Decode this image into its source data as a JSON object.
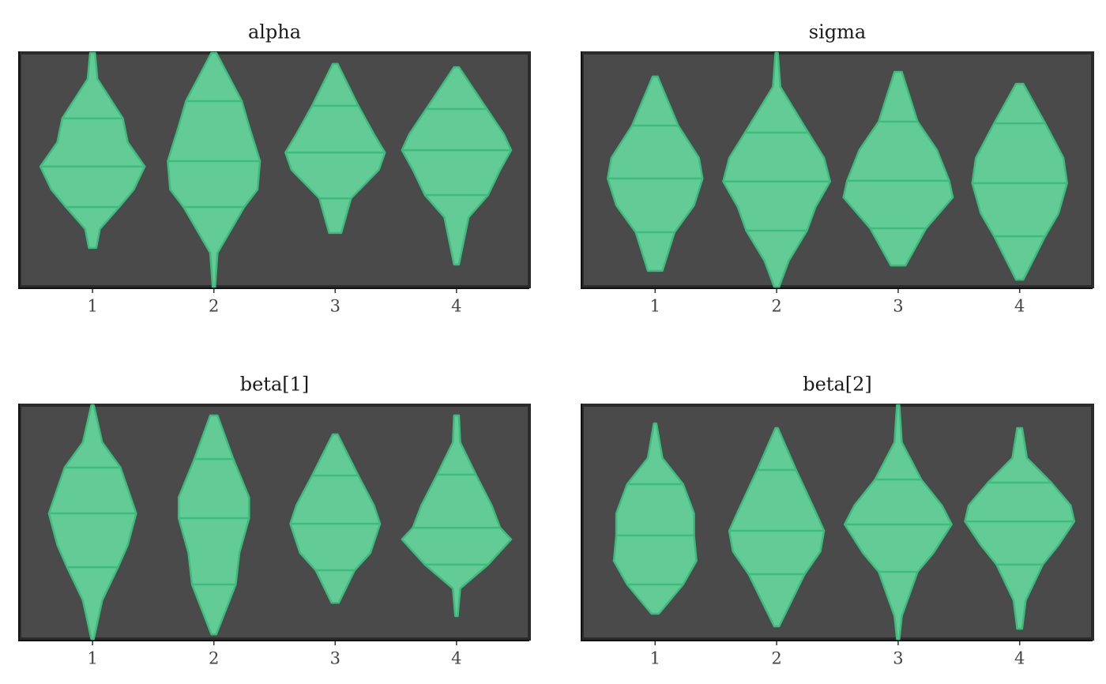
{
  "chart_data": [
    {
      "type": "violin",
      "title": "alpha",
      "categories": [
        "1",
        "2",
        "3",
        "4"
      ],
      "xlim": [
        0.4,
        4.6
      ],
      "ylim": [
        0,
        100
      ],
      "fill": "#63cb95",
      "stroke": "#3dbd7d",
      "background": "#4a4a4a",
      "series": [
        {
          "y": [
            100,
            88.9,
            72,
            61.8,
            51.4,
            41.6,
            34.1,
            24.7,
            16.6
          ],
          "half_width": [
            0.02,
            0.04,
            0.25,
            0.29,
            0.43,
            0.34,
            0.22,
            0.06,
            0.03
          ],
          "quantiles": [
            72,
            51.4,
            34.1
          ]
        },
        {
          "y": [
            100,
            79.4,
            68.6,
            53.7,
            41.6,
            34.1,
            14.5,
            0
          ],
          "half_width": [
            0.02,
            0.23,
            0.29,
            0.38,
            0.36,
            0.25,
            0.03,
            0.01
          ],
          "quantiles": [
            79.4,
            53.7,
            34.1
          ]
        },
        {
          "y": [
            95.3,
            77.4,
            65.2,
            57.4,
            50,
            37.8,
            23
          ],
          "half_width": [
            0.02,
            0.19,
            0.32,
            0.41,
            0.36,
            0.13,
            0.05
          ],
          "quantiles": [
            77.4,
            57.4,
            37.8
          ]
        },
        {
          "y": [
            93.9,
            76,
            65.2,
            58.4,
            50,
            39.2,
            29.7,
            9.5
          ],
          "half_width": [
            0.02,
            0.25,
            0.39,
            0.45,
            0.36,
            0.26,
            0.1,
            0.02
          ],
          "quantiles": [
            76,
            58.4,
            39.2
          ]
        }
      ]
    },
    {
      "type": "violin",
      "title": "sigma",
      "categories": [
        "1",
        "2",
        "3",
        "4"
      ],
      "xlim": [
        0.4,
        4.6
      ],
      "ylim": [
        0,
        100
      ],
      "fill": "#63cb95",
      "stroke": "#3dbd7d",
      "background": "#4a4a4a",
      "series": [
        {
          "y": [
            89.9,
            68.9,
            55.1,
            46.3,
            34.8,
            23.3,
            6.8
          ],
          "half_width": [
            0.02,
            0.19,
            0.36,
            0.39,
            0.32,
            0.16,
            0.06
          ],
          "quantiles": [
            68.9,
            46.3,
            23.3
          ]
        },
        {
          "y": [
            100,
            85.5,
            65.9,
            55.1,
            45,
            34.1,
            24,
            11.1,
            0
          ],
          "half_width": [
            0.01,
            0.03,
            0.26,
            0.39,
            0.44,
            0.32,
            0.25,
            0.1,
            0.02
          ],
          "quantiles": [
            65.9,
            45,
            24
          ]
        },
        {
          "y": [
            91.9,
            70.6,
            58.4,
            45.3,
            38.2,
            25,
            9.1
          ],
          "half_width": [
            0.03,
            0.16,
            0.32,
            0.42,
            0.45,
            0.23,
            0.06
          ],
          "quantiles": [
            70.6,
            45.3,
            25
          ]
        },
        {
          "y": [
            86.8,
            69.9,
            55.1,
            44.3,
            31.4,
            21.6,
            3
          ],
          "half_width": [
            0.03,
            0.21,
            0.36,
            0.39,
            0.32,
            0.21,
            0.03
          ],
          "quantiles": [
            69.9,
            44.3,
            21.6
          ]
        }
      ]
    },
    {
      "type": "violin",
      "title": "beta[1]",
      "categories": [
        "1",
        "2",
        "3",
        "4"
      ],
      "xlim": [
        0.4,
        4.6
      ],
      "ylim": [
        0,
        100
      ],
      "fill": "#63cb95",
      "stroke": "#3dbd7d",
      "background": "#4a4a4a",
      "series": [
        {
          "y": [
            100,
            84.1,
            73.3,
            53.7,
            40.2,
            30.7,
            16.6,
            0
          ],
          "half_width": [
            0.01,
            0.08,
            0.23,
            0.36,
            0.29,
            0.21,
            0.08,
            0.01
          ],
          "quantiles": [
            73.3,
            53.7,
            30.7
          ]
        },
        {
          "y": [
            95.6,
            77,
            60.5,
            51.7,
            36.8,
            23.3,
            2
          ],
          "half_width": [
            0.03,
            0.16,
            0.29,
            0.29,
            0.21,
            0.18,
            0.02
          ],
          "quantiles": [
            77,
            51.7,
            23.3
          ]
        },
        {
          "y": [
            87.5,
            69.9,
            57.1,
            49.3,
            36.8,
            29.4,
            15.5
          ],
          "half_width": [
            0.02,
            0.19,
            0.32,
            0.37,
            0.29,
            0.16,
            0.03
          ],
          "quantiles": [
            69.9,
            49.3,
            29.4
          ]
        },
        {
          "y": [
            95.6,
            84.1,
            70.3,
            57.1,
            47.6,
            42.6,
            31.8,
            21.6,
            9.8
          ],
          "half_width": [
            0.02,
            0.03,
            0.16,
            0.29,
            0.36,
            0.45,
            0.26,
            0.03,
            0.01
          ],
          "quantiles": [
            70.3,
            47.6,
            31.8
          ]
        }
      ]
    },
    {
      "type": "violin",
      "title": "beta[2]",
      "categories": [
        "1",
        "2",
        "3",
        "4"
      ],
      "xlim": [
        0.4,
        4.6
      ],
      "ylim": [
        0,
        100
      ],
      "fill": "#63cb95",
      "stroke": "#3dbd7d",
      "background": "#4a4a4a",
      "series": [
        {
          "y": [
            92.2,
            77.4,
            66.2,
            53.7,
            44.3,
            33.4,
            23.3,
            10.8
          ],
          "half_width": [
            0.01,
            0.06,
            0.23,
            0.32,
            0.32,
            0.34,
            0.23,
            0.03
          ],
          "quantiles": [
            66.2,
            44.3,
            23.3
          ]
        },
        {
          "y": [
            90.2,
            72.3,
            54.4,
            46.3,
            37.5,
            27.7,
            5.4
          ],
          "half_width": [
            0.01,
            0.16,
            0.32,
            0.39,
            0.36,
            0.23,
            0.02
          ],
          "quantiles": [
            72.3,
            46.3,
            27.7
          ]
        },
        {
          "y": [
            100,
            84.1,
            68.2,
            57.1,
            49,
            36.8,
            28.7,
            9.8,
            0
          ],
          "half_width": [
            0.01,
            0.03,
            0.19,
            0.36,
            0.44,
            0.29,
            0.16,
            0.03,
            0.01
          ],
          "quantiles": [
            68.2,
            49,
            28.7
          ]
        },
        {
          "y": [
            90.2,
            77.4,
            66.9,
            57.1,
            50.3,
            40.2,
            31.8,
            16.6,
            4.4
          ],
          "half_width": [
            0.02,
            0.06,
            0.26,
            0.42,
            0.45,
            0.32,
            0.19,
            0.05,
            0.02
          ],
          "quantiles": [
            66.9,
            50.3,
            31.8
          ]
        }
      ]
    }
  ]
}
